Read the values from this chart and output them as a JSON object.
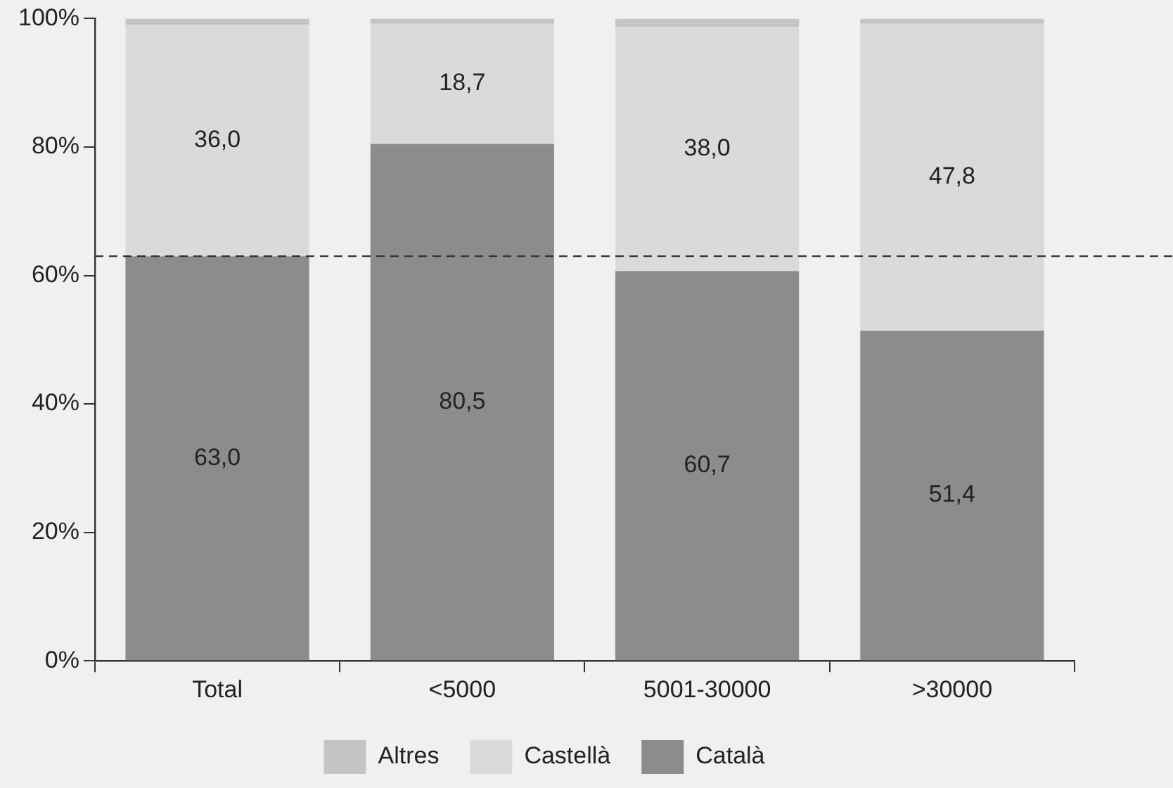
{
  "chart_data": {
    "type": "bar",
    "stacked": true,
    "categories": [
      "Total",
      "<5000",
      "5001-30000",
      ">30000"
    ],
    "series": [
      {
        "name": "Català",
        "color": "#8c8c8c",
        "values": [
          63.0,
          80.5,
          60.7,
          51.4
        ],
        "value_labels": [
          "63,0",
          "80,5",
          "60,7",
          "51,4"
        ]
      },
      {
        "name": "Castellà",
        "color": "#dadada",
        "values": [
          36.0,
          18.7,
          38.0,
          47.8
        ],
        "value_labels": [
          "36,0",
          "18,7",
          "38,0",
          "47,8"
        ]
      },
      {
        "name": "Altres",
        "color": "#c4c4c4",
        "values": [
          1.0,
          0.8,
          1.3,
          0.8
        ]
      }
    ],
    "ylim": [
      0,
      100
    ],
    "yticks": [
      {
        "value": 0,
        "label": "0%"
      },
      {
        "value": 20,
        "label": "20%"
      },
      {
        "value": 40,
        "label": "40%"
      },
      {
        "value": 60,
        "label": "60%"
      },
      {
        "value": 80,
        "label": "80%"
      },
      {
        "value": 100,
        "label": "100%"
      }
    ],
    "grid": false,
    "legend": "bottom",
    "ref_lines": [
      {
        "axis": "y",
        "value": 63.0,
        "color": "#333333",
        "line_style": "dashed"
      }
    ]
  }
}
